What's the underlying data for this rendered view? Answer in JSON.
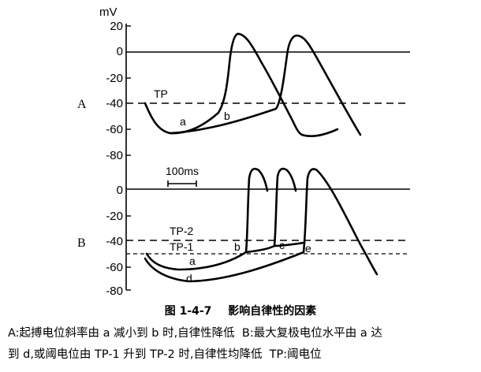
{
  "axis": {
    "unit": "mV",
    "ticks_upper": [
      "20",
      "0",
      "-20",
      "-40",
      "-60",
      "-80"
    ],
    "ticks_lower": [
      "0",
      "-20",
      "-40",
      "-60",
      "-80"
    ]
  },
  "panel_a": {
    "label": "A",
    "threshold": "TP",
    "curve_a": "a",
    "curve_b": "b"
  },
  "panel_b": {
    "label": "B",
    "threshold_2": "TP-2",
    "threshold_1": "TP-1",
    "curve_a": "a",
    "curve_b": "b",
    "curve_c": "c",
    "curve_d": "d",
    "curve_e": "e",
    "scale_bar": "100ms"
  },
  "caption": {
    "figure_number": "图 1-4-7",
    "title": "影响自律性的因素",
    "line1": "A:起搏电位斜率由 a 减小到 b 时,自律性降低  B:最大复极电位水平由 a 达",
    "line2": "到 d,或阈电位由 TP-1 升到 TP-2 时,自律性均降低  TP:阈电位"
  }
}
